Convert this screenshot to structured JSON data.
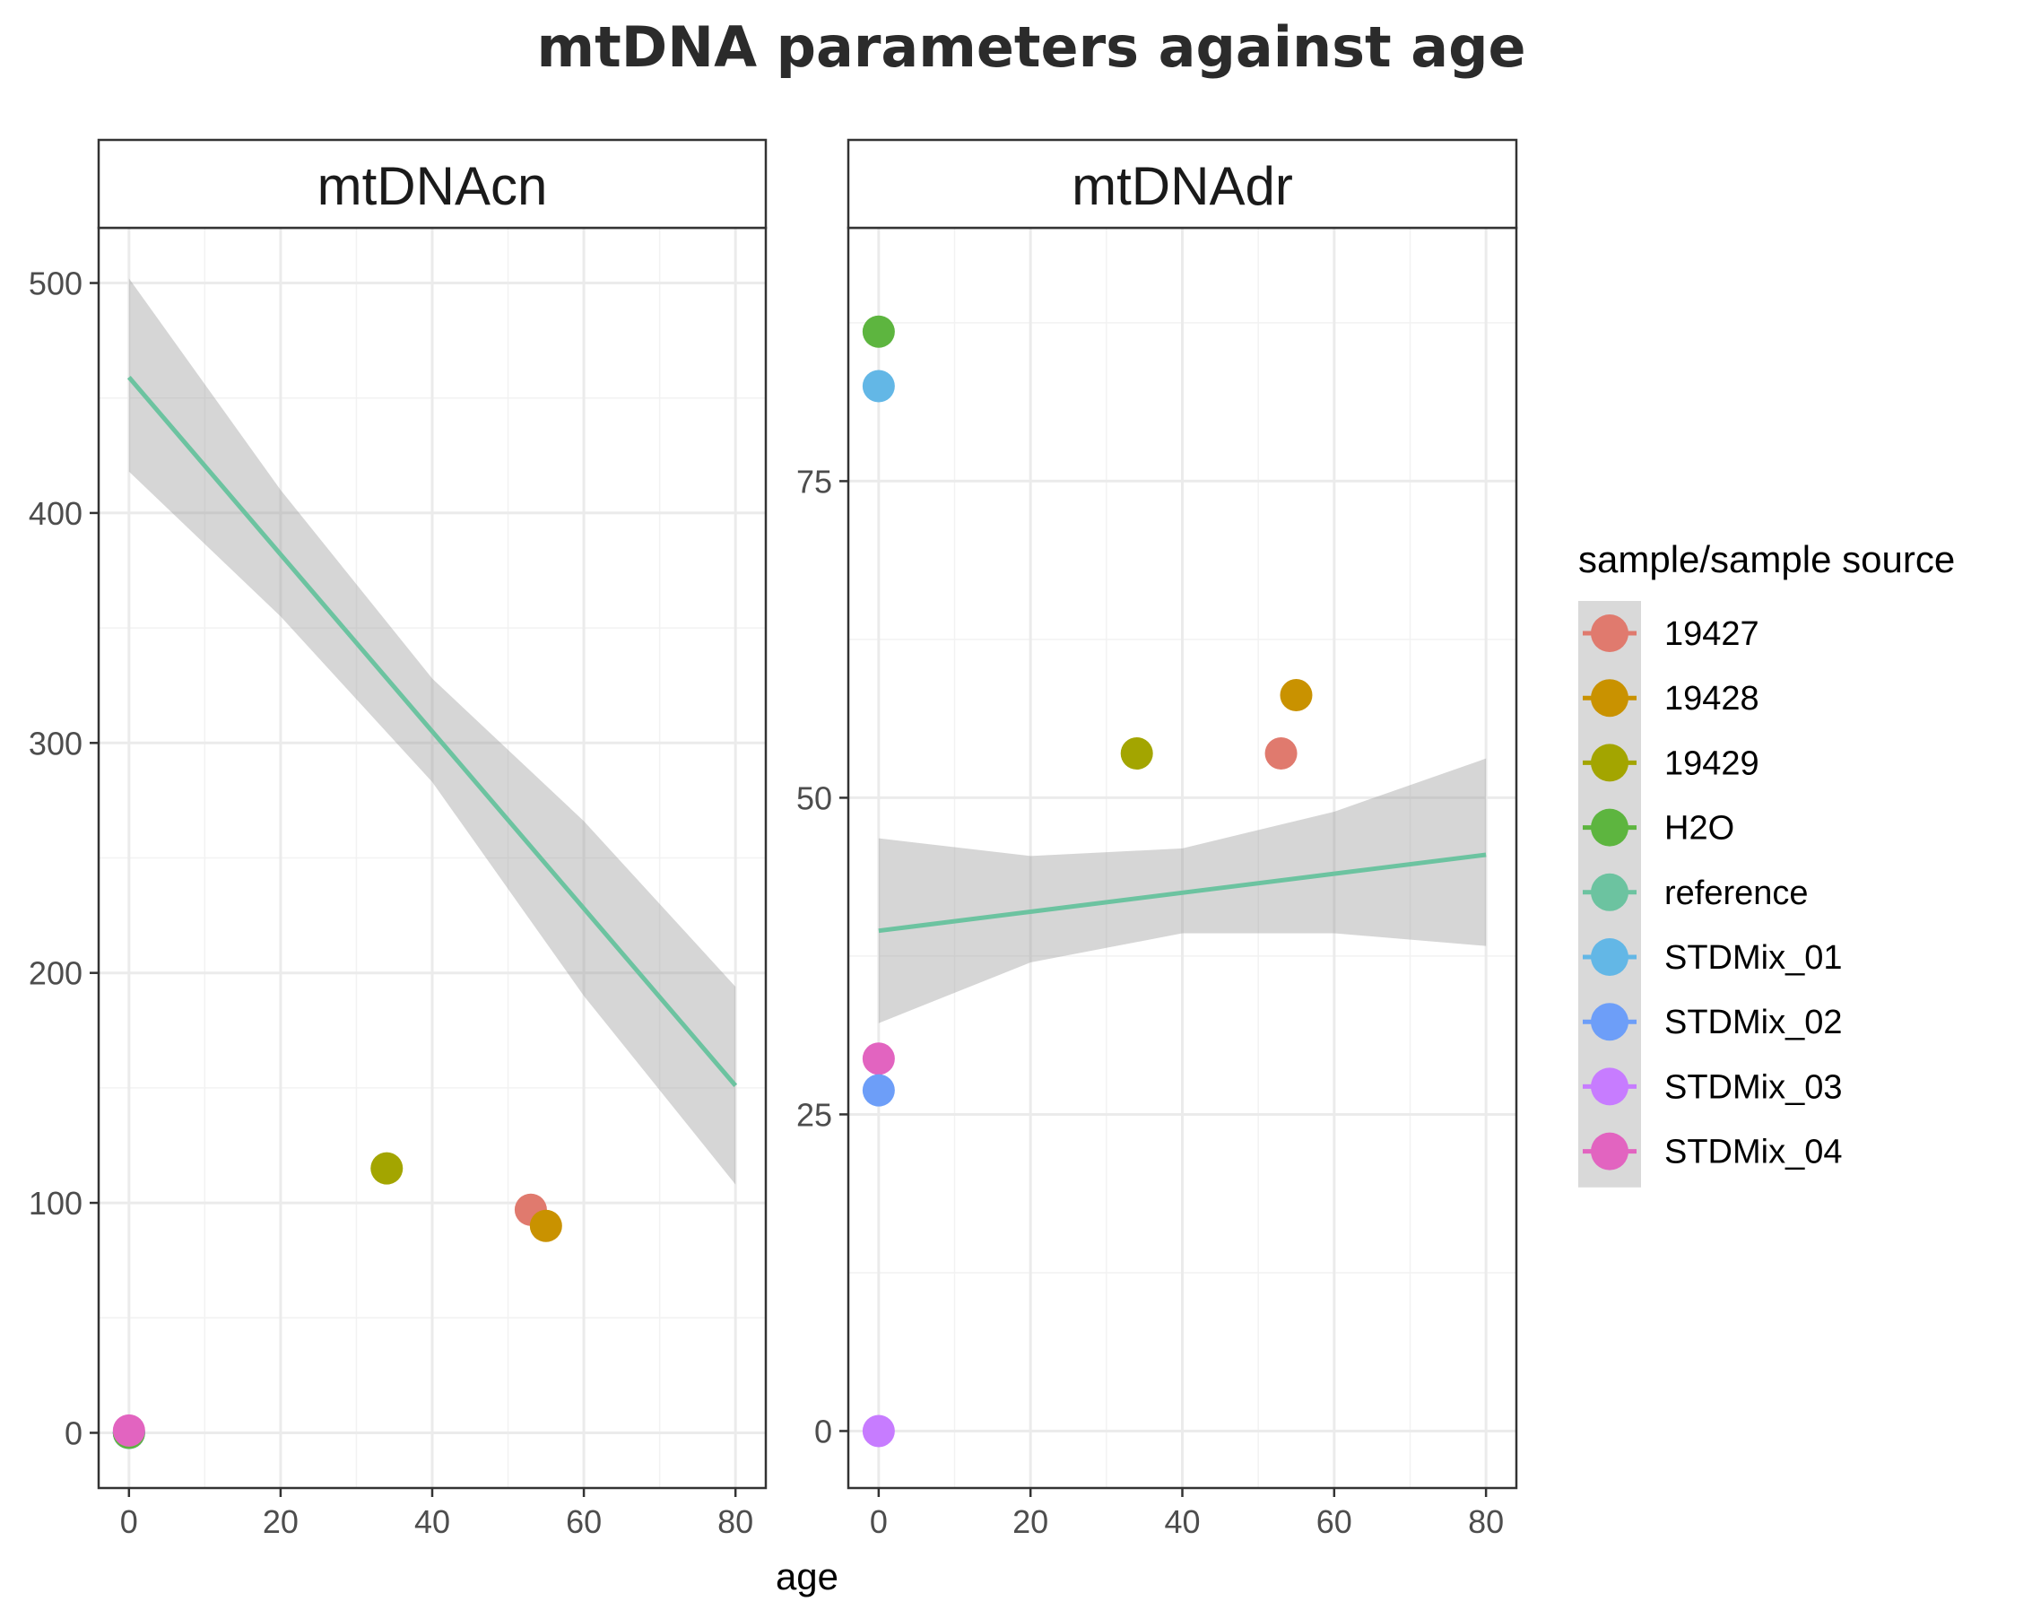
{
  "chart_data": {
    "type": "scatter",
    "title": "mtDNA parameters against age",
    "xlabel": "age",
    "ylabel": "",
    "grid": true,
    "legend": {
      "title": "sample/sample source",
      "placement": "right",
      "entries": [
        {
          "label": "19427",
          "color": "#E07A6E"
        },
        {
          "label": "19428",
          "color": "#C99200"
        },
        {
          "label": "19429",
          "color": "#A3A500"
        },
        {
          "label": "H2O",
          "color": "#5DB53F"
        },
        {
          "label": "reference",
          "color": "#6CC3A0"
        },
        {
          "label": "STDMix_01",
          "color": "#63B7E6"
        },
        {
          "label": "STDMix_02",
          "color": "#6D9EF8"
        },
        {
          "label": "STDMix_03",
          "color": "#C77CFF"
        },
        {
          "label": "STDMix_04",
          "color": "#E264C0"
        }
      ]
    },
    "panels": [
      {
        "strip": "mtDNAcn",
        "xlim": [
          -4,
          84
        ],
        "ylim": [
          -24,
          524
        ],
        "x_ticks": [
          0,
          20,
          40,
          60,
          80
        ],
        "y_ticks": [
          0,
          100,
          200,
          300,
          400,
          500
        ],
        "points": [
          {
            "sample": "STDMix_03",
            "x": 0,
            "y": 0
          },
          {
            "sample": "STDMix_02",
            "x": 0,
            "y": 0
          },
          {
            "sample": "STDMix_01",
            "x": 0,
            "y": 0
          },
          {
            "sample": "H2O",
            "x": 0,
            "y": 0
          },
          {
            "sample": "STDMix_04",
            "x": 0,
            "y": 1
          },
          {
            "sample": "19429",
            "x": 34,
            "y": 115
          },
          {
            "sample": "19427",
            "x": 53,
            "y": 97
          },
          {
            "sample": "19428",
            "x": 55,
            "y": 90
          }
        ],
        "trend": {
          "x": [
            0,
            20,
            40,
            60,
            80
          ],
          "fit": [
            459,
            382,
            305,
            228,
            151
          ],
          "lower": [
            418,
            355,
            283,
            190,
            108
          ],
          "upper": [
            502,
            410,
            328,
            266,
            194
          ],
          "color": "#6CC3A0"
        }
      },
      {
        "strip": "mtDNAdr",
        "xlim": [
          -4,
          84
        ],
        "ylim": [
          -4.5,
          95
        ],
        "x_ticks": [
          0,
          20,
          40,
          60,
          80
        ],
        "y_ticks": [
          0,
          25,
          50,
          75
        ],
        "points": [
          {
            "sample": "H2O",
            "x": 0,
            "y": 86.8
          },
          {
            "sample": "STDMix_01",
            "x": 0,
            "y": 82.5
          },
          {
            "sample": "STDMix_04",
            "x": 0,
            "y": 29.4
          },
          {
            "sample": "STDMix_02",
            "x": 0,
            "y": 26.9
          },
          {
            "sample": "STDMix_03",
            "x": 0,
            "y": 0
          },
          {
            "sample": "19429",
            "x": 34,
            "y": 53.5
          },
          {
            "sample": "19428",
            "x": 55,
            "y": 58.1
          },
          {
            "sample": "19427",
            "x": 53,
            "y": 53.5
          }
        ],
        "trend": {
          "x": [
            0,
            20,
            40,
            60,
            80
          ],
          "fit": [
            39.5,
            41,
            42.5,
            44,
            45.5
          ],
          "lower": [
            32.2,
            37,
            39.3,
            39.3,
            38.3
          ],
          "upper": [
            46.8,
            45.4,
            46,
            48.9,
            53.1
          ],
          "color": "#6CC3A0"
        }
      }
    ]
  }
}
